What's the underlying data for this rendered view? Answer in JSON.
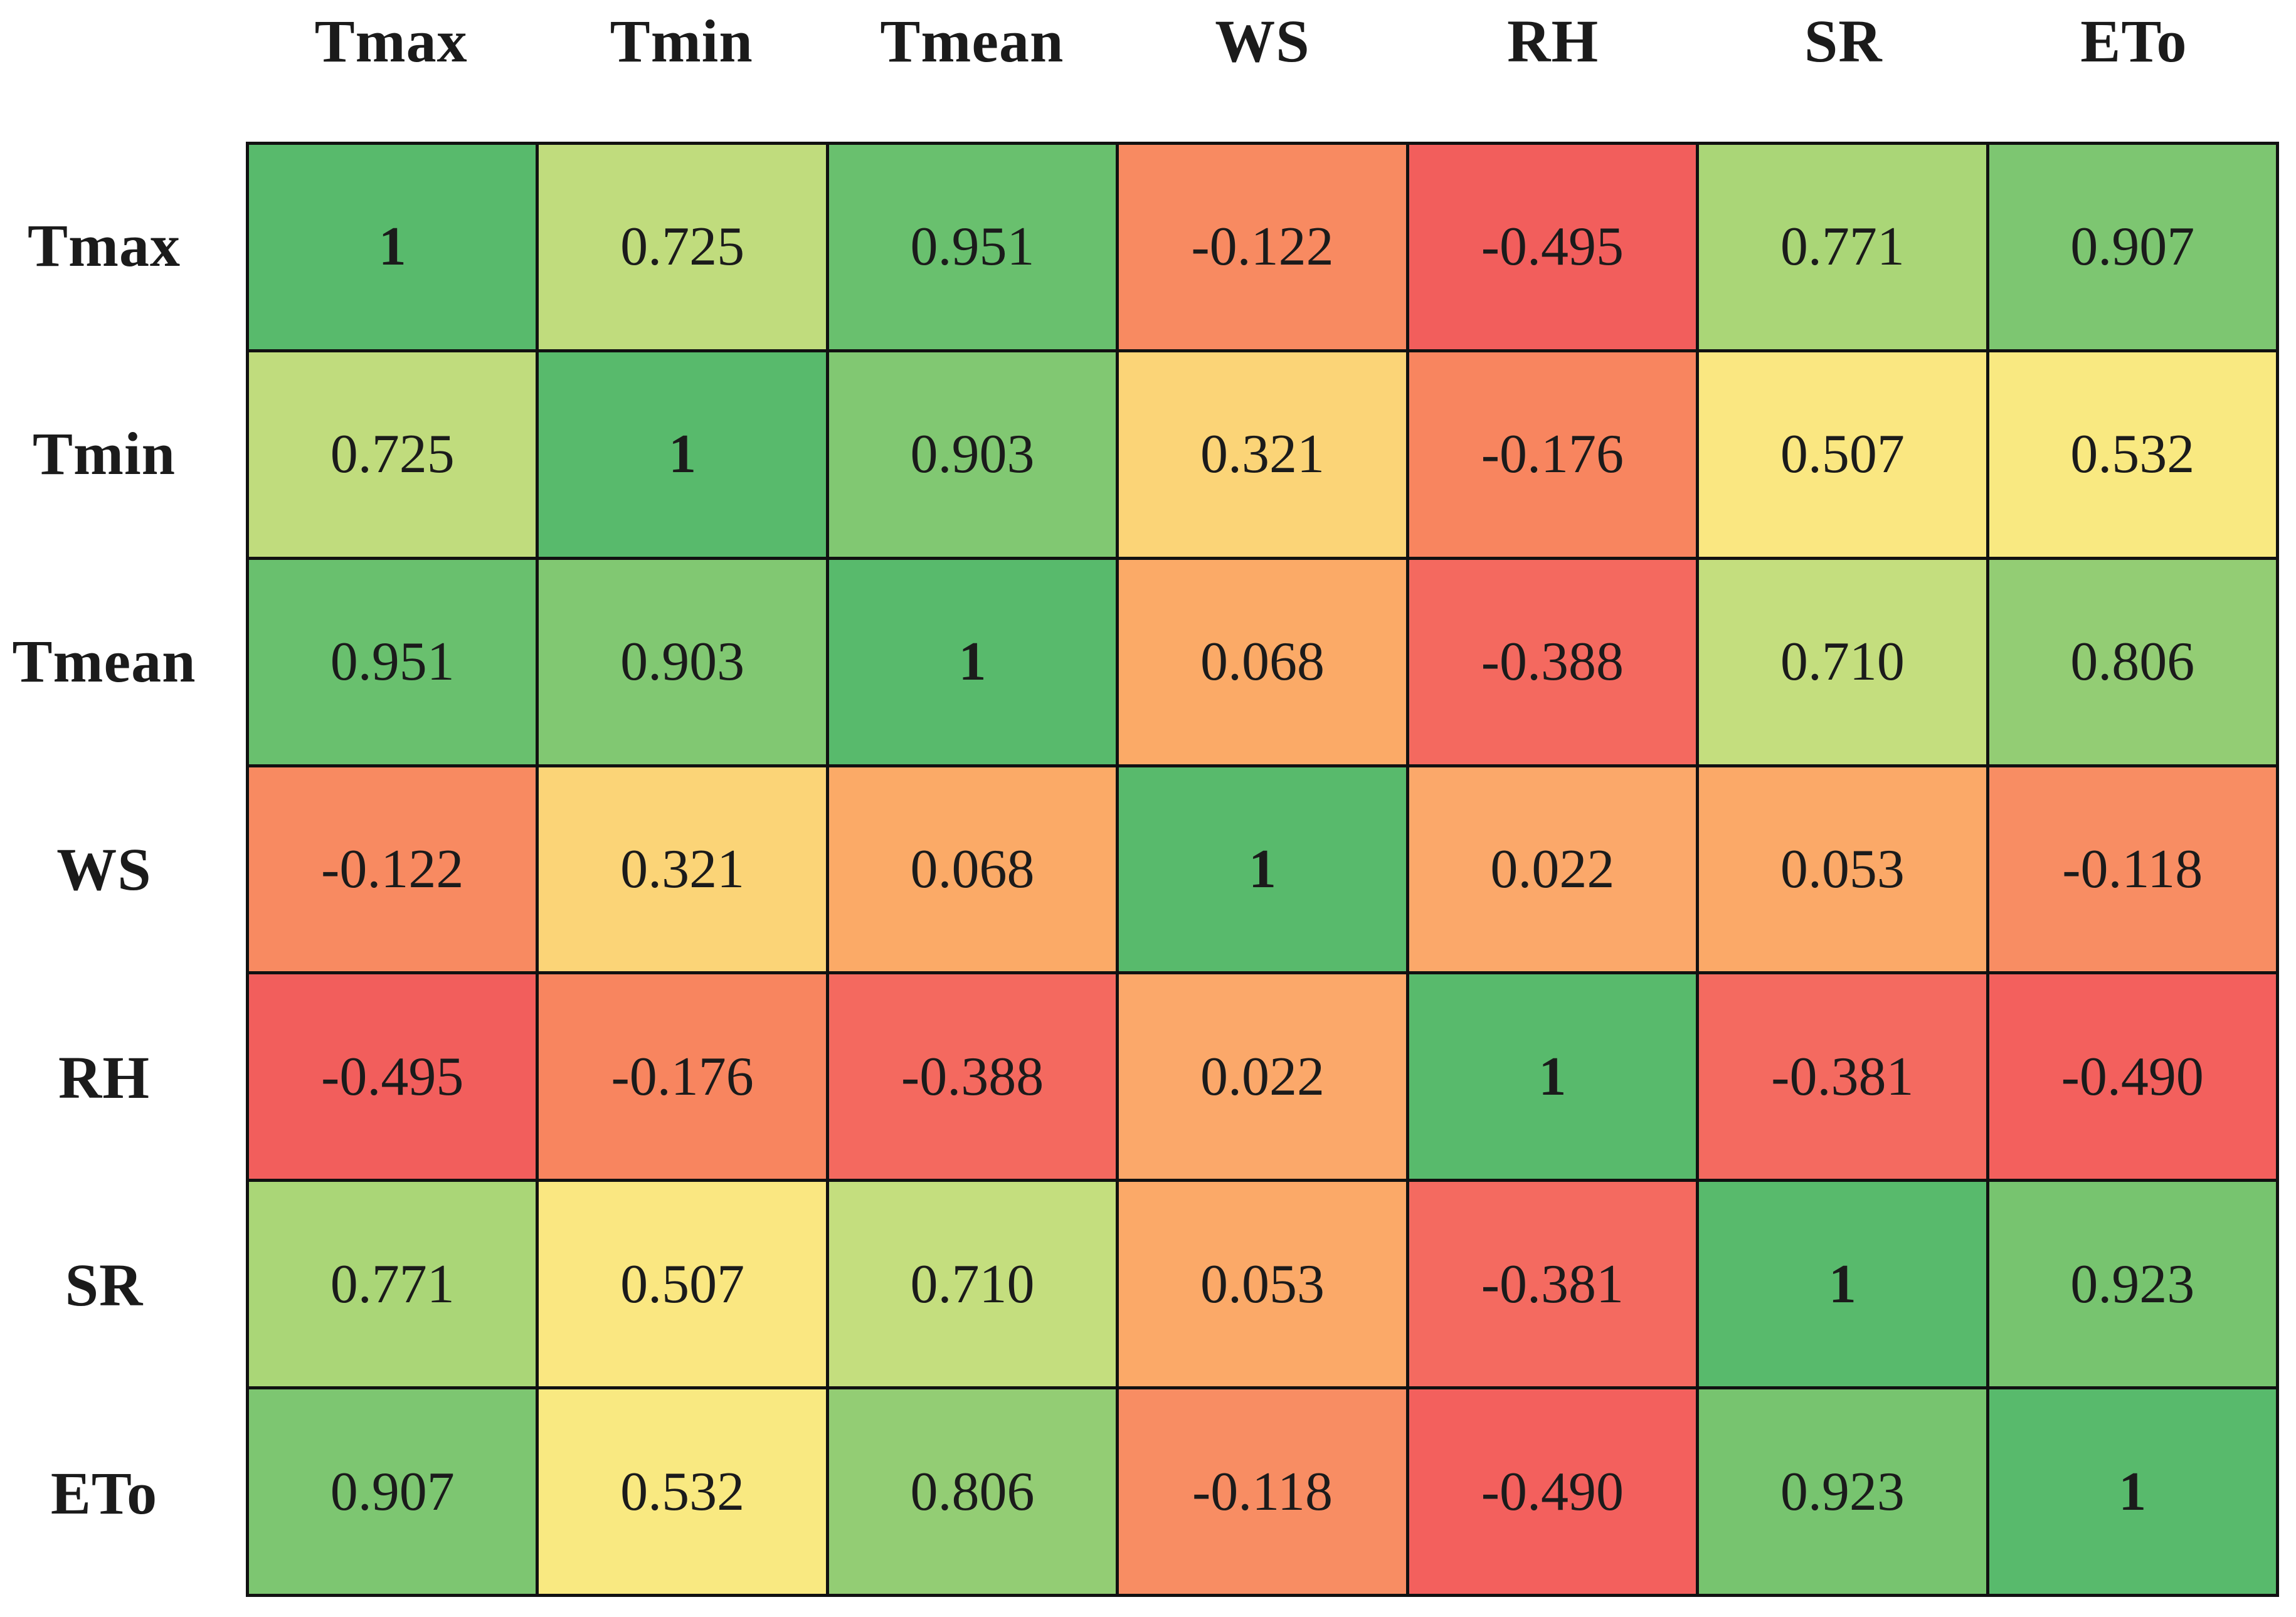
{
  "chart_data": {
    "type": "heatmap",
    "subtype": "correlation-matrix",
    "variables": [
      "Tmax",
      "Tmin",
      "Tmean",
      "WS",
      "RH",
      "SR",
      "ETo"
    ],
    "matrix": [
      [
        1,
        0.725,
        0.951,
        -0.122,
        -0.495,
        0.771,
        0.907
      ],
      [
        0.725,
        1,
        0.903,
        0.321,
        -0.176,
        0.507,
        0.532
      ],
      [
        0.951,
        0.903,
        1,
        0.068,
        -0.388,
        0.71,
        0.806
      ],
      [
        -0.122,
        0.321,
        0.068,
        1,
        0.022,
        0.053,
        -0.118
      ],
      [
        -0.495,
        -0.176,
        -0.388,
        0.022,
        1,
        -0.381,
        -0.49
      ],
      [
        0.771,
        0.507,
        0.71,
        0.053,
        -0.381,
        1,
        0.923
      ],
      [
        0.907,
        0.532,
        0.806,
        -0.118,
        -0.49,
        0.923,
        1
      ]
    ],
    "cell_labels": [
      [
        "1",
        "0.725",
        "0.951",
        "-0.122",
        "-0.495",
        "0.771",
        "0.907"
      ],
      [
        "0.725",
        "1",
        "0.903",
        "0.321",
        "-0.176",
        "0.507",
        "0.532"
      ],
      [
        "0.951",
        "0.903",
        "1",
        "0.068",
        "-0.388",
        "0.710",
        "0.806"
      ],
      [
        "-0.122",
        "0.321",
        "0.068",
        "1",
        "0.022",
        "0.053",
        "-0.118"
      ],
      [
        "-0.495",
        "-0.176",
        "-0.388",
        "0.022",
        "1",
        "-0.381",
        "-0.490"
      ],
      [
        "0.771",
        "0.507",
        "0.710",
        "0.053",
        "-0.381",
        "1",
        "0.923"
      ],
      [
        "0.907",
        "0.532",
        "0.806",
        "-0.118",
        "-0.490",
        "0.923",
        "1"
      ]
    ],
    "cell_colors": [
      [
        "#58ba6c",
        "#c0dc7d",
        "#69c06e",
        "#f88a61",
        "#f25e5c",
        "#aad677",
        "#7dc671"
      ],
      [
        "#c0dc7d",
        "#58ba6c",
        "#81c872",
        "#fbd477",
        "#f8855f",
        "#fae781",
        "#f9e981"
      ],
      [
        "#69c06e",
        "#81c872",
        "#58ba6c",
        "#fbaa67",
        "#f4695f",
        "#c4de7e",
        "#93cd74"
      ],
      [
        "#f88a61",
        "#fbd477",
        "#fbaa67",
        "#58ba6c",
        "#fba86a",
        "#fba968",
        "#f88d63"
      ],
      [
        "#f25e5c",
        "#f8855f",
        "#f4695f",
        "#fba86a",
        "#58ba6c",
        "#f46a60",
        "#f3605d"
      ],
      [
        "#aad677",
        "#fae781",
        "#c4de7e",
        "#fba968",
        "#f46a60",
        "#58ba6c",
        "#77c46f"
      ],
      [
        "#7dc671",
        "#f9e981",
        "#93cd74",
        "#f88d63",
        "#f3605d",
        "#77c46f",
        "#58ba6c"
      ]
    ],
    "value_range": [
      -0.495,
      1
    ],
    "colorscale": {
      "low": "#f8696b",
      "mid": "#ffeb84",
      "high": "#63be7b"
    },
    "grid_line_color": "#111111",
    "legend_position": "none"
  }
}
